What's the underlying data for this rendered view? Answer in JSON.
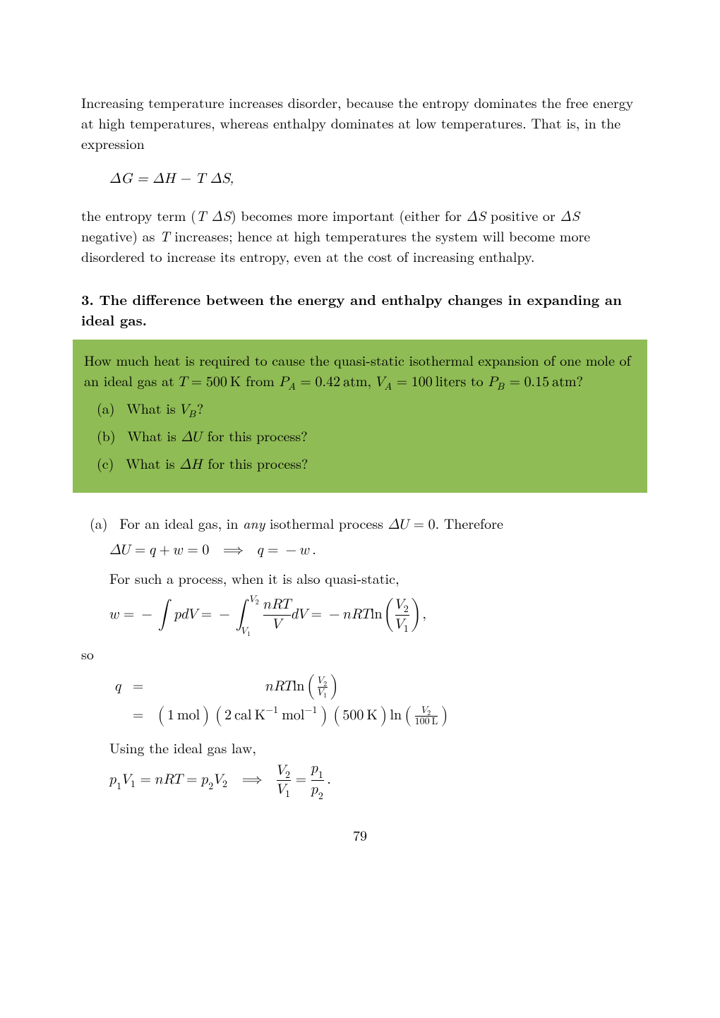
{
  "para1": "Increasing temperature increases disorder, because the entropy dominates the free energy at high temperatures, whereas enthalpy dominates at low temperatures. That is, in the expression",
  "eqn1": "ΔG = ΔH − T ΔS,",
  "para2_prefix": "the entropy term (",
  "para2_tds": "T ΔS",
  "para2_mid1": ") becomes more important (either for ",
  "para2_ds1": "ΔS",
  "para2_mid2": " positive or ",
  "para2_ds2": "ΔS",
  "para2_mid3": " negative) as ",
  "para2_T": "T",
  "para2_tail": " increases; hence at high temperatures the system will become more disordered to increase its entropy, even at the cost of increasing enthalpy.",
  "heading": "3.  The difference between the energy and enthalpy changes in expanding an ideal gas.",
  "box": {
    "intro_a": "How much heat is required to cause the quasi-static isothermal expansion of one mole of an ideal gas at ",
    "intro_T": "T = 500 K",
    "intro_b": " from ",
    "intro_PA": "P_A = 0.42 atm",
    "intro_c": ", ",
    "intro_VA": "V_A = 100 liters",
    "intro_d": " to ",
    "intro_PB": "P_B = 0.15 atm",
    "intro_e": "?",
    "qa_label": "(a)",
    "qa_pre": "What is ",
    "qa_VB": "V_B",
    "qa_post": "?",
    "qb_label": "(b)",
    "qb_pre": "What is ",
    "qb_dU": "ΔU",
    "qb_post": " for this process?",
    "qc_label": "(c)",
    "qc_pre": "What is ",
    "qc_dH": "ΔH",
    "qc_post": " for this process?"
  },
  "sol": {
    "a_label": "(a)",
    "a_pre": "For an ideal gas, in ",
    "a_any": "any",
    "a_mid": " isothermal process ",
    "a_dU0": "ΔU = 0",
    "a_post": ". Therefore",
    "a_eqn1": "ΔU = q + w = 0  ⟹  q = −w.",
    "a_body2": "For such a process, when it is also quasi-static,",
    "a_so": "so",
    "a_body3": "Using the ideal gas law,",
    "page_number": "79"
  }
}
